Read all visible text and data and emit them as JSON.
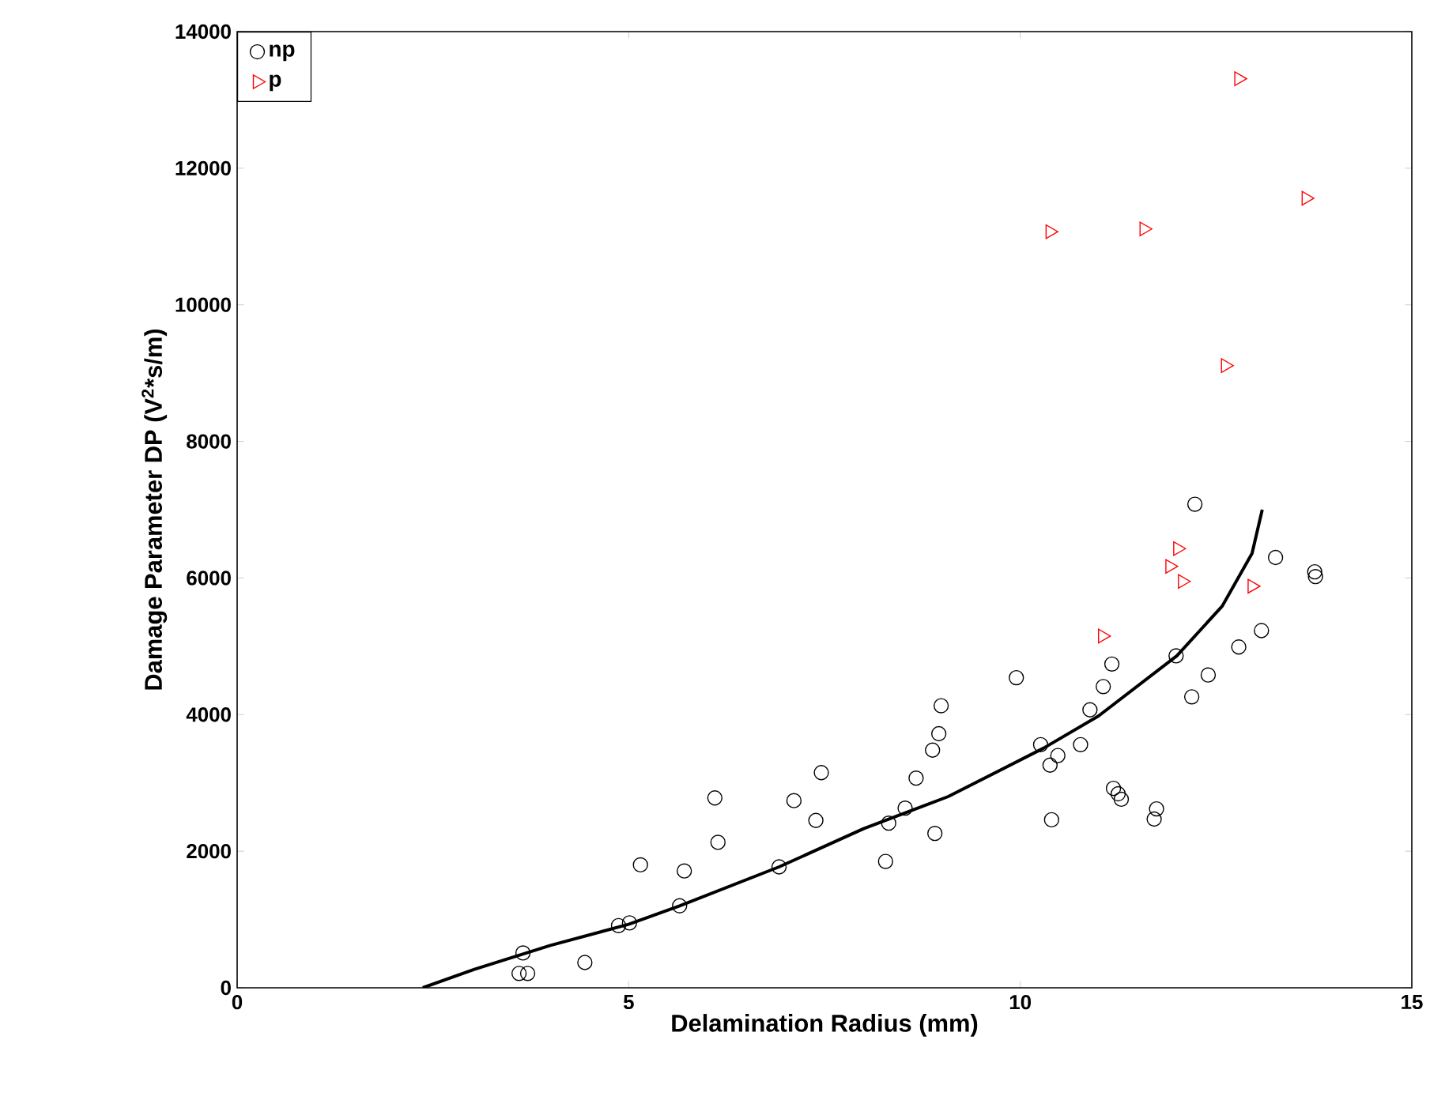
{
  "chart_data": {
    "type": "scatter",
    "xlabel": "Delamination Radius (mm)",
    "ylabel": "Damage Parameter DP (V$^{2}$*s/m)",
    "xlim": [
      0,
      15
    ],
    "ylim": [
      0,
      14000
    ],
    "xticks": [
      0,
      5,
      10,
      15
    ],
    "yticks": [
      0,
      2000,
      4000,
      6000,
      8000,
      10000,
      12000,
      14000
    ],
    "grid": false,
    "legend": "top left",
    "series": [
      {
        "name": "np",
        "color": "#000000",
        "marker": "circle",
        "x": [
          3.6,
          3.71,
          3.65,
          4.44,
          4.87,
          5.01,
          5.15,
          5.71,
          5.65,
          6.1,
          6.14,
          6.92,
          7.11,
          7.39,
          7.46,
          8.28,
          8.32,
          8.53,
          8.67,
          8.91,
          8.88,
          8.96,
          8.99,
          9.95,
          10.26,
          10.38,
          10.48,
          10.4,
          10.77,
          10.89,
          11.06,
          11.17,
          11.19,
          11.25,
          11.29,
          11.71,
          11.74,
          11.99,
          12.19,
          12.4,
          12.23,
          12.79,
          13.08,
          13.26,
          13.76,
          13.77
        ],
        "values": [
          210,
          210,
          510,
          370,
          910,
          950,
          1800,
          1710,
          1200,
          2780,
          2130,
          1770,
          2740,
          2450,
          3150,
          1850,
          2410,
          2630,
          3070,
          2260,
          3480,
          3720,
          4130,
          4540,
          3560,
          3260,
          3400,
          2460,
          3560,
          4070,
          4410,
          4740,
          2920,
          2840,
          2760,
          2470,
          2620,
          4860,
          4260,
          4580,
          7080,
          4990,
          5230,
          6300,
          6090,
          6020
        ]
      },
      {
        "name": "p",
        "color": "#ff0000",
        "marker": "triangle",
        "x": [
          12.01,
          11.91,
          12.07,
          12.96,
          11.05,
          12.79,
          13.65,
          10.38,
          11.58,
          12.62
        ],
        "values": [
          6430,
          6170,
          5950,
          5880,
          5150,
          13310,
          11560,
          11070,
          11110,
          9110
        ]
      },
      {
        "type": "line",
        "color": "#000000",
        "marker": "none",
        "line_style": "solid",
        "x": [
          2.37,
          3.03,
          4.0,
          5.0,
          5.65,
          6.92,
          8.0,
          9.08,
          10.3,
          11.0,
          12.0,
          12.58,
          12.96,
          13.09
        ],
        "values": [
          0,
          270,
          620,
          930,
          1200,
          1770,
          2330,
          2800,
          3510,
          3980,
          4860,
          5590,
          6360,
          7000
        ]
      }
    ]
  }
}
